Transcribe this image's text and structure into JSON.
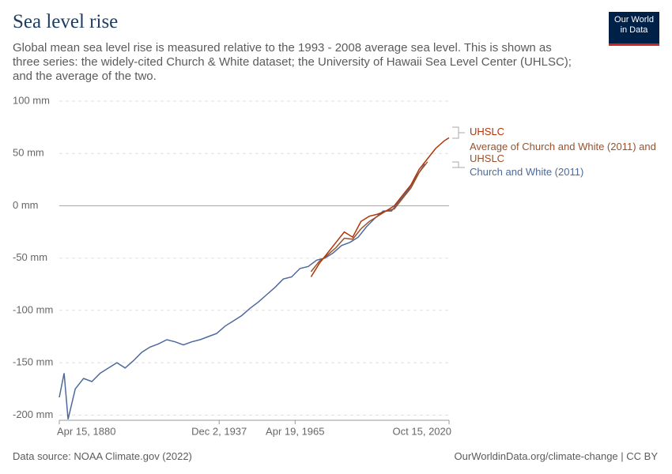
{
  "header": {
    "logo_line1": "Our World",
    "logo_line2": "in Data"
  },
  "chart_data": {
    "type": "line",
    "title": "Sea level rise",
    "subtitle": "Global mean sea level rise is measured relative to the 1993 - 2008 average sea level. This is shown as three series: the widely-cited Church & White dataset; the University of Hawaii Sea Level Center (UHLSC); and the average of the two.",
    "source": "Data source: NOAA Climate.gov (2022)",
    "footer_right": "OurWorldinData.org/climate-change | CC BY",
    "xlim": [
      "1880-04-15",
      "2020-10-15"
    ],
    "xticks": [
      {
        "value": "1880-04-15",
        "label": "Apr 15, 1880"
      },
      {
        "value": "1937-12-02",
        "label": "Dec 2, 1937"
      },
      {
        "value": "1965-04-19",
        "label": "Apr 19, 1965"
      },
      {
        "value": "2020-10-15",
        "label": "Oct 15, 2020"
      }
    ],
    "ylim": [
      -205,
      100
    ],
    "yticks": [
      {
        "value": -200,
        "label": "-200 mm"
      },
      {
        "value": -150,
        "label": "-150 mm"
      },
      {
        "value": -100,
        "label": "-100 mm"
      },
      {
        "value": -50,
        "label": "-50 mm"
      },
      {
        "value": 0,
        "label": "0 mm"
      },
      {
        "value": 50,
        "label": "50 mm"
      },
      {
        "value": 100,
        "label": "100 mm"
      }
    ],
    "grid": true,
    "series": [
      {
        "name": "UHSLC",
        "color": "#b13507",
        "x": [
          "1971-01-15",
          "1974-01-15",
          "1977-01-15",
          "1980-01-15",
          "1983-01-15",
          "1986-01-15",
          "1989-01-15",
          "1992-01-15",
          "1995-01-15",
          "1998-01-15",
          "2001-01-15",
          "2004-01-15",
          "2007-01-15",
          "2010-01-15",
          "2013-01-15",
          "2016-01-15",
          "2019-01-15",
          "2020-10-15"
        ],
        "values": [
          -68,
          -55,
          -45,
          -35,
          -25,
          -30,
          -15,
          -10,
          -8,
          -5,
          0,
          10,
          20,
          35,
          45,
          55,
          62,
          65
        ]
      },
      {
        "name": "Average of Church and White (2011) and UHSLC",
        "color": "#9a5129",
        "x": [
          "1971-01-15",
          "1974-01-15",
          "1977-01-15",
          "1980-01-15",
          "1983-01-15",
          "1986-01-15",
          "1989-01-15",
          "1992-01-15",
          "1995-01-15",
          "1998-01-15",
          "2001-01-15",
          "2004-01-15",
          "2007-01-15",
          "2010-01-15",
          "2013-01-15"
        ],
        "values": [
          -63,
          -53,
          -47,
          -40,
          -31,
          -32,
          -22,
          -15,
          -10,
          -5,
          -3,
          7,
          17,
          32,
          42
        ]
      },
      {
        "name": "Church and White (2011)",
        "color": "#4c6a9c",
        "x": [
          "1880-04-15",
          "1882-01-15",
          "1883-06-15",
          "1886-01-15",
          "1889-01-15",
          "1892-01-15",
          "1895-01-15",
          "1898-01-15",
          "1901-01-15",
          "1904-01-15",
          "1907-01-15",
          "1910-01-15",
          "1913-01-15",
          "1916-01-15",
          "1919-01-15",
          "1922-01-15",
          "1925-01-15",
          "1928-01-15",
          "1931-01-15",
          "1934-01-15",
          "1937-01-15",
          "1940-01-15",
          "1943-01-15",
          "1946-01-15",
          "1949-01-15",
          "1952-01-15",
          "1955-01-15",
          "1958-01-15",
          "1961-01-15",
          "1964-01-15",
          "1967-01-15",
          "1970-01-15",
          "1973-01-15",
          "1976-01-15",
          "1979-01-15",
          "1982-01-15",
          "1985-01-15",
          "1988-01-15",
          "1991-01-15",
          "1994-01-15",
          "1997-01-15",
          "2000-01-15",
          "2003-01-15",
          "2006-01-15",
          "2009-01-15",
          "2012-01-15"
        ],
        "values": [
          -183,
          -160,
          -204,
          -175,
          -165,
          -168,
          -160,
          -155,
          -150,
          -155,
          -148,
          -140,
          -135,
          -132,
          -128,
          -130,
          -133,
          -130,
          -128,
          -125,
          -122,
          -115,
          -110,
          -105,
          -98,
          -92,
          -85,
          -78,
          -70,
          -68,
          -60,
          -58,
          -52,
          -50,
          -45,
          -38,
          -35,
          -30,
          -20,
          -12,
          -5,
          -5,
          5,
          15,
          28,
          40
        ]
      }
    ]
  }
}
